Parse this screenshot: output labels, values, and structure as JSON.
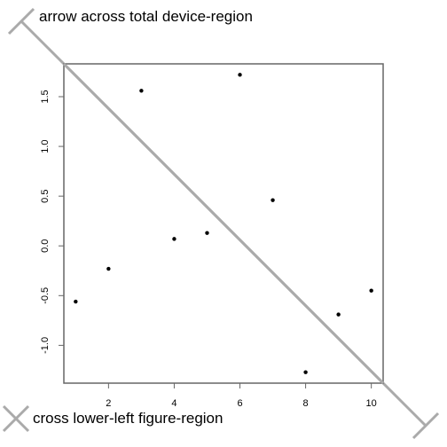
{
  "chart_data": {
    "type": "scatter",
    "title": "",
    "xlabel": "",
    "ylabel": "",
    "x": [
      1,
      2,
      3,
      4,
      5,
      6,
      7,
      8,
      9,
      10
    ],
    "y": [
      -0.56,
      -0.23,
      1.56,
      0.07,
      0.13,
      1.72,
      0.46,
      -1.27,
      -0.69,
      -0.45
    ],
    "xlim": [
      0.64,
      10.36
    ],
    "ylim": [
      -1.38,
      1.83
    ],
    "x_ticks": [
      2,
      4,
      6,
      8,
      10
    ],
    "y_ticks": [
      -1.0,
      -0.5,
      0.0,
      0.5,
      1.0,
      1.5
    ],
    "x_tick_labels": [
      "2",
      "4",
      "6",
      "8",
      "10"
    ],
    "y_tick_labels": [
      "-1.0",
      "-0.5",
      "0.0",
      "0.5",
      "1.0",
      "1.5"
    ],
    "grid": false,
    "point_color": "#000000",
    "annotation_color": "#aaaaaa",
    "annotations": {
      "device_arrow": "arrow across total device-region",
      "figure_cross": "cross lower-left figure-region"
    }
  }
}
